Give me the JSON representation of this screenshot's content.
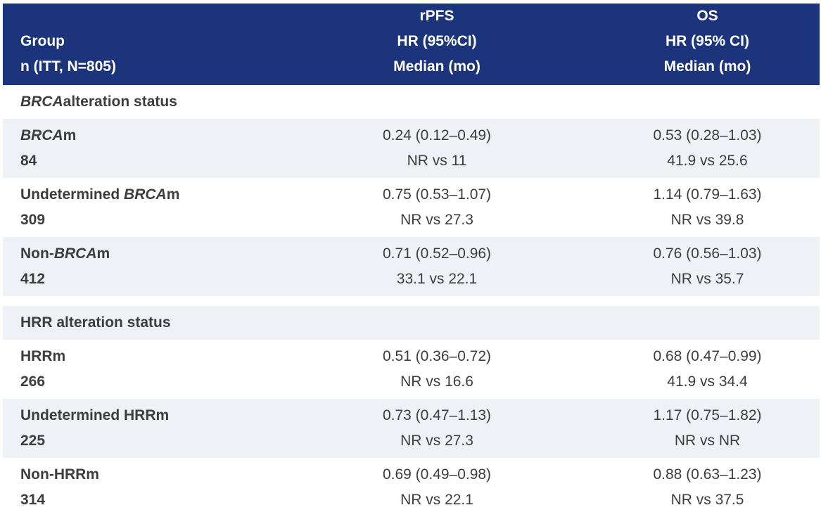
{
  "header": {
    "group_line1": "Group",
    "group_line2": "n (ITT, N=805)",
    "rpfs_line1": "rPFS",
    "rpfs_line2": "HR (95%CI)",
    "rpfs_line3": "Median (mo)",
    "os_line1": "OS",
    "os_line2": "HR (95% CI)",
    "os_line3": "Median (mo)"
  },
  "sections": [
    {
      "title_italic": "BRCA",
      "title_rest": " alteration status",
      "rows": [
        {
          "prefix": "",
          "italic": "BRCA",
          "suffix": "m",
          "n": "84",
          "rpfs_hr": "0.24 (0.12–0.49)",
          "rpfs_median": "NR vs 11",
          "os_hr": "0.53 (0.28–1.03)",
          "os_median": "41.9 vs 25.6"
        },
        {
          "prefix": "Undetermined ",
          "italic": "BRCA",
          "suffix": "m",
          "n": "309",
          "rpfs_hr": "0.75 (0.53–1.07)",
          "rpfs_median": "NR vs 27.3",
          "os_hr": "1.14 (0.79–1.63)",
          "os_median": "NR vs 39.8"
        },
        {
          "prefix": "Non-",
          "italic": "BRCA",
          "suffix": "m",
          "n": "412",
          "rpfs_hr": "0.71 (0.52–0.96)",
          "rpfs_median": "33.1 vs 22.1",
          "os_hr": "0.76 (0.56–1.03)",
          "os_median": "NR vs 35.7"
        }
      ]
    },
    {
      "title_italic": "",
      "title_rest": "HRR alteration status",
      "rows": [
        {
          "prefix": "HRRm",
          "italic": "",
          "suffix": "",
          "n": "266",
          "rpfs_hr": "0.51 (0.36–0.72)",
          "rpfs_median": "NR vs 16.6",
          "os_hr": "0.68 (0.47–0.99)",
          "os_median": "41.9 vs 34.4"
        },
        {
          "prefix": "Undetermined HRRm",
          "italic": "",
          "suffix": "",
          "n": "225",
          "rpfs_hr": "0.73 (0.47–1.13)",
          "rpfs_median": "NR vs 27.3",
          "os_hr": "1.17 (0.75–1.82)",
          "os_median": "NR vs NR"
        },
        {
          "prefix": "Non-HRRm",
          "italic": "",
          "suffix": "",
          "n": "314",
          "rpfs_hr": "0.69 (0.49–0.98)",
          "rpfs_median": "NR vs 22.1",
          "os_hr": "0.88 (0.63–1.23)",
          "os_median": "NR vs 37.5"
        }
      ]
    }
  ],
  "chart_data": {
    "type": "table",
    "columns": [
      "Group n (ITT, N=805)",
      "rPFS HR (95%CI) Median (mo)",
      "OS HR (95% CI) Median (mo)"
    ],
    "rows": [
      {
        "section": "BRCA alteration status",
        "group": "BRCAm",
        "n": 84,
        "rpfs_hr": 0.24,
        "rpfs_ci": [
          0.12,
          0.49
        ],
        "rpfs_median": "NR vs 11",
        "os_hr": 0.53,
        "os_ci": [
          0.28,
          1.03
        ],
        "os_median": "41.9 vs 25.6"
      },
      {
        "section": "BRCA alteration status",
        "group": "Undetermined BRCAm",
        "n": 309,
        "rpfs_hr": 0.75,
        "rpfs_ci": [
          0.53,
          1.07
        ],
        "rpfs_median": "NR vs 27.3",
        "os_hr": 1.14,
        "os_ci": [
          0.79,
          1.63
        ],
        "os_median": "NR vs 39.8"
      },
      {
        "section": "BRCA alteration status",
        "group": "Non-BRCAm",
        "n": 412,
        "rpfs_hr": 0.71,
        "rpfs_ci": [
          0.52,
          0.96
        ],
        "rpfs_median": "33.1 vs 22.1",
        "os_hr": 0.76,
        "os_ci": [
          0.56,
          1.03
        ],
        "os_median": "NR vs 35.7"
      },
      {
        "section": "HRR alteration status",
        "group": "HRRm",
        "n": 266,
        "rpfs_hr": 0.51,
        "rpfs_ci": [
          0.36,
          0.72
        ],
        "rpfs_median": "NR vs 16.6",
        "os_hr": 0.68,
        "os_ci": [
          0.47,
          0.99
        ],
        "os_median": "41.9 vs 34.4"
      },
      {
        "section": "HRR alteration status",
        "group": "Undetermined HRRm",
        "n": 225,
        "rpfs_hr": 0.73,
        "rpfs_ci": [
          0.47,
          1.13
        ],
        "rpfs_median": "NR vs 27.3",
        "os_hr": 1.17,
        "os_ci": [
          0.75,
          1.82
        ],
        "os_median": "NR vs NR"
      },
      {
        "section": "HRR alteration status",
        "group": "Non-HRRm",
        "n": 314,
        "rpfs_hr": 0.69,
        "rpfs_ci": [
          0.49,
          0.98
        ],
        "rpfs_median": "NR vs 22.1",
        "os_hr": 0.88,
        "os_ci": [
          0.63,
          1.23
        ],
        "os_median": "NR vs 37.5"
      }
    ]
  },
  "colors": {
    "header_bg": "#1c347c",
    "row_shade": "#eef1f6",
    "text": "#3d3d3d"
  }
}
